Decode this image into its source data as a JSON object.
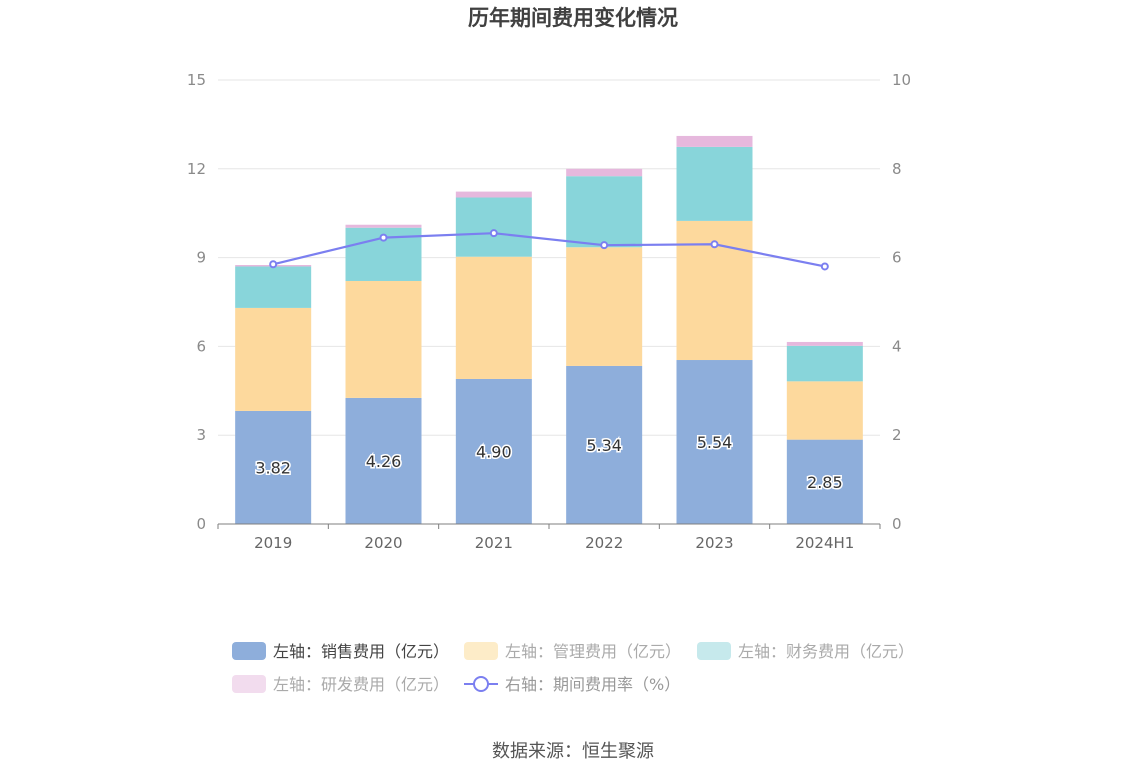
{
  "chart_data": {
    "type": "bar",
    "title": "历年期间费用变化情况",
    "categories": [
      "2019",
      "2020",
      "2021",
      "2022",
      "2023",
      "2024H1"
    ],
    "stacked": true,
    "left_axis": {
      "ylim": [
        0,
        15
      ],
      "ticks": [
        0,
        3,
        6,
        9,
        12,
        15
      ]
    },
    "right_axis": {
      "ylim": [
        0,
        10
      ],
      "ticks": [
        0,
        2,
        4,
        6,
        8,
        10
      ]
    },
    "series": [
      {
        "name": "左轴：销售费用（亿元）",
        "axis": "left",
        "type": "bar",
        "color": "#8eaedb",
        "values": [
          3.82,
          4.26,
          4.9,
          5.34,
          5.54,
          2.85
        ],
        "labels": [
          "3.82",
          "4.26",
          "4.90",
          "5.34",
          "5.54",
          "2.85"
        ]
      },
      {
        "name": "左轴：管理费用（亿元）",
        "axis": "left",
        "type": "bar",
        "color": "#fdd99d",
        "values": [
          3.48,
          3.95,
          4.13,
          4.01,
          4.7,
          1.97
        ]
      },
      {
        "name": "左轴：财务费用（亿元）",
        "axis": "left",
        "type": "bar",
        "color": "#88d5da",
        "values": [
          1.4,
          1.8,
          2.0,
          2.4,
          2.5,
          1.2
        ]
      },
      {
        "name": "左轴：研发费用（亿元）",
        "axis": "left",
        "type": "bar",
        "color": "#e6b8dd",
        "values": [
          0.05,
          0.1,
          0.2,
          0.25,
          0.37,
          0.13
        ]
      },
      {
        "name": "右轴：期间费用率（%）",
        "axis": "right",
        "type": "line",
        "color": "#7b7ff0",
        "values": [
          5.85,
          6.45,
          6.55,
          6.28,
          6.3,
          5.8
        ]
      }
    ],
    "grid": true,
    "legend_position": "bottom"
  },
  "legend": {
    "swatch_colors": [
      "#8eaedb",
      "#fdecc8",
      "#c6e9ec",
      "#f2dcee",
      "#7b7ff0"
    ],
    "text_colors": [
      "#444444",
      "#aaaaaa",
      "#aaaaaa",
      "#aaaaaa",
      "#999999"
    ]
  },
  "source": "数据来源：恒生聚源"
}
